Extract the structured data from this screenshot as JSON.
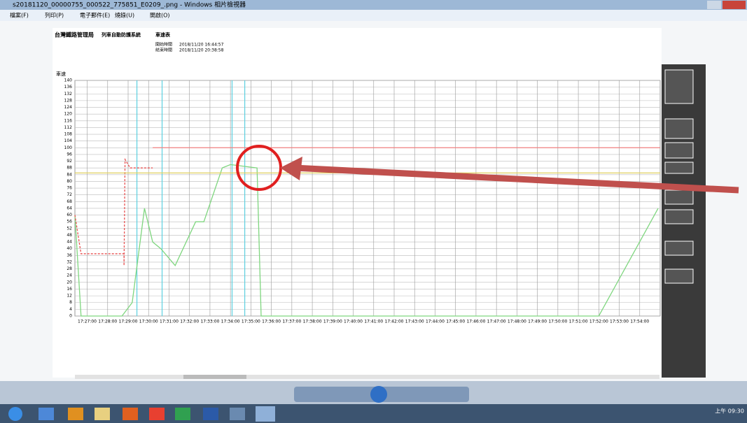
{
  "window": {
    "title": "s20181120_00000755_000522_775851_E0209_.png - Windows 相片檢視器",
    "menu": [
      "檔案(F)",
      "列印(P)",
      "電子郵件(E)",
      "燒錄(U)",
      "開啟(O)"
    ]
  },
  "document": {
    "agency": "台灣鐵路管理局",
    "system": "列車自動防護系統",
    "report": "車速表",
    "start_label": "開始時間",
    "start": "2018/11/20 16:44:57",
    "end_label": "結束時間",
    "end": "2018/11/20 20:38:58"
  },
  "chart": {
    "type": "line",
    "y_label": "車速",
    "ylim": [
      0,
      140
    ],
    "yticks": [
      0,
      4,
      8,
      12,
      16,
      20,
      24,
      28,
      32,
      36,
      40,
      44,
      48,
      52,
      56,
      60,
      64,
      68,
      72,
      76,
      80,
      84,
      88,
      92,
      96,
      100,
      104,
      108,
      112,
      116,
      120,
      124,
      128,
      132,
      136,
      140
    ],
    "xlim": [
      26.4,
      55
    ],
    "xticks": [
      {
        "value": 27,
        "label": "17:27:00"
      },
      {
        "value": 28,
        "label": "17:28:00"
      },
      {
        "value": 29,
        "label": "17:29:00"
      },
      {
        "value": 30,
        "label": "17:30:00"
      },
      {
        "value": 31,
        "label": "17:31:00"
      },
      {
        "value": 32,
        "label": "17:32:00"
      },
      {
        "value": 33,
        "label": "17:33:00"
      },
      {
        "value": 34,
        "label": "17:34:00"
      },
      {
        "value": 35,
        "label": "17:35:00"
      },
      {
        "value": 36,
        "label": "17:36:00"
      },
      {
        "value": 37,
        "label": "17:37:00"
      },
      {
        "value": 38,
        "label": "17:38:00"
      },
      {
        "value": 39,
        "label": "17:39:00"
      },
      {
        "value": 40,
        "label": "17:40:00"
      },
      {
        "value": 41,
        "label": "17:41:00"
      },
      {
        "value": 42,
        "label": "17:42:00"
      },
      {
        "value": 43,
        "label": "17:43:00"
      },
      {
        "value": 44,
        "label": "17:44:00"
      },
      {
        "value": 45,
        "label": "17:45:00"
      },
      {
        "value": 46,
        "label": "17:46:00"
      },
      {
        "value": 47,
        "label": "17:47:00"
      },
      {
        "value": 48,
        "label": "17:48:00"
      },
      {
        "value": 49,
        "label": "17:49:00"
      },
      {
        "value": 50,
        "label": "17:50:00"
      },
      {
        "value": 51,
        "label": "17:51:00"
      },
      {
        "value": 52,
        "label": "17:52:00"
      },
      {
        "value": 53,
        "label": "17:53:00"
      },
      {
        "value": 54,
        "label": "17:54:00"
      }
    ],
    "series": [
      {
        "color": "#7fd67f",
        "dash": false,
        "x": [
          26.4,
          26.7,
          28.7,
          29.2,
          29.8,
          30.2,
          30.6,
          31.3,
          32.3,
          32.7,
          33.6,
          34.0,
          35.3,
          35.5,
          52.0,
          54.9
        ],
        "values": [
          60,
          0,
          0,
          8,
          64,
          44,
          40,
          30,
          56,
          56,
          88,
          90,
          88,
          0,
          0,
          64
        ]
      },
      {
        "color": "#e85050",
        "dash": true,
        "x": [
          26.4,
          26.7,
          28.8,
          28.8,
          28.85,
          29.1,
          30.2
        ],
        "values": [
          60,
          37,
          37,
          30,
          93,
          88,
          88
        ]
      },
      {
        "color": "#f08080",
        "dash": false,
        "x": [
          30.2,
          55
        ],
        "values": [
          100,
          100
        ]
      },
      {
        "color": "#e0d060",
        "dash": false,
        "x": [
          26.4,
          55
        ],
        "values": [
          85,
          85
        ]
      }
    ],
    "events": [
      29.43,
      30.66,
      34.08,
      34.7
    ]
  },
  "taskbar": {
    "clock": "上午 09:30"
  }
}
